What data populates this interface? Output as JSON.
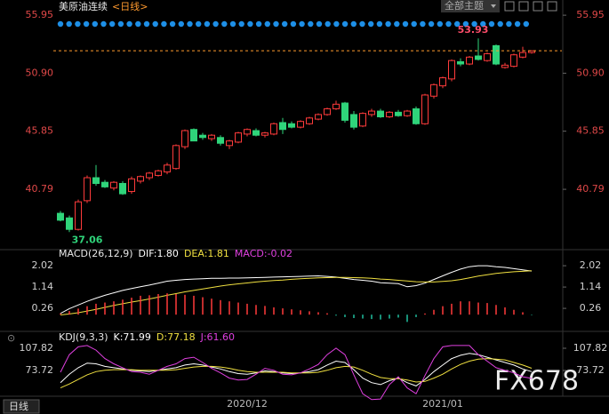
{
  "header": {
    "theme_button": "全部主题"
  },
  "footer": {
    "period_button": "日线",
    "watermark": "FX678"
  },
  "chart_data": [
    {
      "type": "candlestick",
      "title": "美原油连续",
      "subtitle": "<日线>",
      "categories": [
        null,
        null,
        null,
        null,
        null,
        null,
        null,
        null,
        null,
        null,
        null,
        null,
        null,
        null,
        null,
        null,
        null,
        null,
        null,
        null,
        null,
        "2020/12",
        null,
        null,
        null,
        null,
        null,
        null,
        null,
        null,
        null,
        null,
        null,
        null,
        null,
        null,
        null,
        null,
        null,
        null,
        null,
        null,
        null,
        "2021/01",
        null,
        null,
        null,
        null,
        null,
        null,
        null,
        null,
        null,
        null
      ],
      "open": [
        38.7,
        38.3,
        37.3,
        39.8,
        41.8,
        41.4,
        40.9,
        41.3,
        40.6,
        41.5,
        41.8,
        42.0,
        42.3,
        42.6,
        44.5,
        46.0,
        45.5,
        45.2,
        45.3,
        44.6,
        44.9,
        45.6,
        45.9,
        45.5,
        45.6,
        46.6,
        46.5,
        46.2,
        46.5,
        46.9,
        47.3,
        47.8,
        48.3,
        47.3,
        46.3,
        47.3,
        47.6,
        47.1,
        47.5,
        47.2,
        47.8,
        46.5,
        48.9,
        49.8,
        50.4,
        51.9,
        51.7,
        52.4,
        52.0,
        53.3,
        51.4,
        51.5,
        52.3,
        52.7
      ],
      "high": [
        38.9,
        38.5,
        39.9,
        42.0,
        42.9,
        41.6,
        41.5,
        41.5,
        41.9,
        42.0,
        42.3,
        42.5,
        43.1,
        44.7,
        46.0,
        46.1,
        45.7,
        45.6,
        45.5,
        45.1,
        45.8,
        46.1,
        46.1,
        45.8,
        46.6,
        47.0,
        46.7,
        46.8,
        47.1,
        47.4,
        47.9,
        48.5,
        48.4,
        47.6,
        47.5,
        47.8,
        47.8,
        47.6,
        47.7,
        47.7,
        48.0,
        49.1,
        50.0,
        50.6,
        52.1,
        52.2,
        52.4,
        53.93,
        52.7,
        53.4,
        51.8,
        52.6,
        53.2,
        52.9
      ],
      "low": [
        38.0,
        37.06,
        37.2,
        39.6,
        41.1,
        40.9,
        40.7,
        40.3,
        40.4,
        41.3,
        41.6,
        41.9,
        42.1,
        42.5,
        44.3,
        45.0,
        45.1,
        45.0,
        44.6,
        44.3,
        44.8,
        45.4,
        45.4,
        45.3,
        45.5,
        45.6,
        46.1,
        46.1,
        46.4,
        46.8,
        47.2,
        47.7,
        46.6,
        46.0,
        46.2,
        47.1,
        47.0,
        47.0,
        47.1,
        47.1,
        46.4,
        46.4,
        48.7,
        49.6,
        50.2,
        51.5,
        51.6,
        52.0,
        51.9,
        51.6,
        51.3,
        51.4,
        52.2,
        52.6
      ],
      "close": [
        38.1,
        37.3,
        39.7,
        41.8,
        41.3,
        41.0,
        41.4,
        40.4,
        41.7,
        41.9,
        42.2,
        42.4,
        42.9,
        44.6,
        45.9,
        45.0,
        45.3,
        45.5,
        44.8,
        45.0,
        45.7,
        46.0,
        45.5,
        45.7,
        46.5,
        46.0,
        46.2,
        46.7,
        47.0,
        47.3,
        47.8,
        48.2,
        46.8,
        46.2,
        47.4,
        47.6,
        47.1,
        47.5,
        47.2,
        47.6,
        46.5,
        49.0,
        49.9,
        50.5,
        52.0,
        51.7,
        52.3,
        52.1,
        52.6,
        51.7,
        51.6,
        52.5,
        52.7,
        52.85
      ],
      "last_price_line": 52.85,
      "line_color": "#ff9a2e",
      "up_color": "#ff3b3b",
      "down_color": "#2fd47a",
      "annotation_high_color": "#ff4d6a",
      "annotation_low_color": "#2fd47a",
      "ylim": [
        36.0,
        56.5
      ],
      "yticks": [
        55.95,
        {
          "value": 50.9,
          "label": "50.90"
        },
        45.85,
        40.79
      ],
      "tick_color": "#e04848"
    },
    {
      "type": "indicator",
      "title": "MACD(26,12,9)",
      "ylim": [
        -0.58,
        2.28
      ],
      "yticks": [
        2.02,
        1.14,
        0.26
      ],
      "tick_color": "#d0d0d0",
      "series": [
        {
          "name": "DIF:1.80",
          "color": "#ffffff",
          "style": "line",
          "values": [
            0.05,
            0.25,
            0.4,
            0.55,
            0.68,
            0.8,
            0.9,
            1.0,
            1.08,
            1.15,
            1.22,
            1.3,
            1.38,
            1.42,
            1.45,
            1.47,
            1.48,
            1.5,
            1.5,
            1.51,
            1.51,
            1.52,
            1.53,
            1.54,
            1.55,
            1.56,
            1.57,
            1.58,
            1.59,
            1.6,
            1.58,
            1.55,
            1.5,
            1.45,
            1.42,
            1.38,
            1.32,
            1.3,
            1.28,
            1.15,
            1.2,
            1.3,
            1.45,
            1.6,
            1.75,
            1.88,
            1.98,
            2.02,
            2.02,
            1.98,
            1.95,
            1.9,
            1.85,
            1.8
          ]
        },
        {
          "name": "DEA:1.81",
          "color": "#f0e040",
          "style": "line",
          "values": [
            -0.01,
            0.03,
            0.08,
            0.15,
            0.22,
            0.3,
            0.38,
            0.45,
            0.52,
            0.58,
            0.65,
            0.72,
            0.8,
            0.87,
            0.94,
            1.0,
            1.06,
            1.12,
            1.18,
            1.23,
            1.27,
            1.31,
            1.35,
            1.38,
            1.41,
            1.43,
            1.46,
            1.48,
            1.5,
            1.52,
            1.53,
            1.54,
            1.54,
            1.53,
            1.52,
            1.5,
            1.47,
            1.45,
            1.42,
            1.39,
            1.36,
            1.35,
            1.35,
            1.37,
            1.4,
            1.45,
            1.52,
            1.59,
            1.65,
            1.7,
            1.74,
            1.77,
            1.79,
            1.81
          ]
        },
        {
          "name": "MACD:-0.02",
          "color": "#e040e0",
          "style": "histogram",
          "up_color": "#ff3b3b",
          "down_color": "#20c0a0",
          "values": [
            0.05,
            0.15,
            0.25,
            0.35,
            0.45,
            0.5,
            0.55,
            0.62,
            0.7,
            0.78,
            0.8,
            0.85,
            0.88,
            0.85,
            0.82,
            0.78,
            0.72,
            0.66,
            0.6,
            0.55,
            0.5,
            0.45,
            0.4,
            0.36,
            0.3,
            0.26,
            0.22,
            0.18,
            0.14,
            0.1,
            0.06,
            -0.04,
            -0.1,
            -0.14,
            -0.16,
            -0.18,
            -0.2,
            -0.16,
            -0.12,
            -0.3,
            -0.1,
            0.05,
            0.2,
            0.35,
            0.45,
            0.55,
            0.55,
            0.5,
            0.48,
            0.4,
            0.3,
            0.2,
            0.1,
            -0.02
          ]
        }
      ]
    },
    {
      "type": "indicator",
      "title": "KDJ(9,3,3)",
      "ylim": [
        26,
        116
      ],
      "yticks": [
        107.82,
        73.72
      ],
      "tick_color": "#d0d0d0",
      "series": [
        {
          "name": "K:71.99",
          "color": "#ffffff",
          "style": "line",
          "values": [
            55,
            68,
            78,
            85,
            84,
            80,
            78,
            76,
            74,
            73,
            72,
            74,
            76,
            78,
            82,
            84,
            82,
            79,
            76,
            72,
            69,
            68,
            70,
            73,
            72,
            70,
            69,
            70,
            72,
            75,
            82,
            88,
            86,
            75,
            62,
            55,
            52,
            58,
            62,
            55,
            50,
            60,
            72,
            82,
            92,
            97,
            100,
            98,
            94,
            90,
            86,
            82,
            76,
            71.99
          ]
        },
        {
          "name": "D:77.18",
          "color": "#f0e040",
          "style": "line",
          "values": [
            47,
            53,
            60,
            67,
            72,
            74,
            75,
            75,
            75,
            74,
            74,
            74,
            74,
            75,
            77,
            79,
            80,
            80,
            79,
            77,
            74,
            72,
            71,
            71,
            71,
            71,
            70,
            70,
            70,
            71,
            74,
            78,
            80,
            79,
            74,
            68,
            63,
            61,
            61,
            59,
            56,
            57,
            62,
            68,
            76,
            83,
            88,
            91,
            92,
            91,
            90,
            86,
            82,
            77.18
          ]
        },
        {
          "name": "J:61.60",
          "color": "#e040e0",
          "style": "line",
          "values": [
            71,
            98,
            110,
            112,
            105,
            92,
            84,
            78,
            72,
            71,
            68,
            74,
            80,
            84,
            92,
            94,
            86,
            77,
            70,
            62,
            59,
            60,
            68,
            77,
            74,
            68,
            67,
            70,
            76,
            83,
            98,
            108,
            98,
            67,
            38,
            29,
            30,
            52,
            64,
            47,
            38,
            66,
            92,
            110,
            112,
            112,
            112,
            98,
            88,
            78,
            74,
            70,
            64,
            61.6
          ]
        }
      ]
    }
  ]
}
